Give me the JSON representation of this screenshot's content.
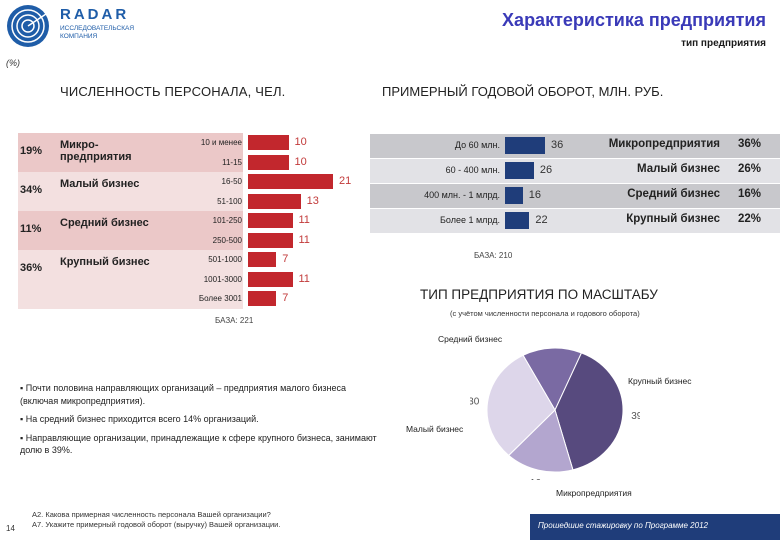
{
  "header": {
    "logo_name": "RADAR",
    "logo_subtitle": "ИССЛЕДОВАТЕЛЬСКАЯ КОМПАНИЯ",
    "title": "Характеристика предприятия",
    "subtitle": "тип предприятия",
    "percent_note": "(%)"
  },
  "colors": {
    "accent_red": "#c2272d",
    "band_pink": "#ebc8c8",
    "band_light": "#f3e0e0",
    "accent_navy": "#1f3d7a",
    "band_grey": "#c8c8cc",
    "band_grey_light": "#e2e2e6",
    "pie_dark": "#574a7e",
    "pie_mid": "#7a6aa3",
    "pie_light": "#b3a6cf",
    "pie_pale": "#ddd6ea"
  },
  "chart_data": [
    {
      "type": "bar",
      "title": "ЧИСЛЕННОСТЬ ПЕРСОНАЛА, ЧЕЛ.",
      "categories": [
        "10 и менее",
        "11-15",
        "16-50",
        "51-100",
        "101-250",
        "250-500",
        "501-1000",
        "1001-3000",
        "Более 3001"
      ],
      "values": [
        10,
        10,
        21,
        13,
        11,
        11,
        7,
        11,
        7
      ],
      "groups": [
        {
          "label": "Микро-предприятия",
          "pct": "19%"
        },
        {
          "label": "Малый бизнес",
          "pct": "34%"
        },
        {
          "label": "Средний бизнес",
          "pct": "11%"
        },
        {
          "label": "Крупный бизнес",
          "pct": "36%"
        }
      ],
      "basis": "БАЗА: 221",
      "xlim": [
        0,
        21
      ]
    },
    {
      "type": "bar",
      "title": "ПРИМЕРНЫЙ ГОДОВОЙ ОБОРОТ, МЛН. РУБ.",
      "categories": [
        "До 60 млн.",
        "60 - 400 млн.",
        "400 млн. - 1 млрд.",
        "Более 1 млрд."
      ],
      "values": [
        36,
        26,
        16,
        22
      ],
      "groups": [
        {
          "label": "Микропредприятия",
          "pct": "36%"
        },
        {
          "label": "Малый бизнес",
          "pct": "26%"
        },
        {
          "label": "Средний бизнес",
          "pct": "16%"
        },
        {
          "label": "Крупный бизнес",
          "pct": "22%"
        }
      ],
      "basis": "БАЗА: 210",
      "xlim": [
        0,
        36
      ]
    },
    {
      "type": "pie",
      "title": "ТИП ПРЕДПРИЯТИЯ ПО МАСШТАБУ",
      "subtitle": "(с учётом численности персонала и годового оборота)",
      "categories": [
        "Средний бизнес",
        "Крупный бизнес",
        "Микропредприятия",
        "Малый бизнес"
      ],
      "values": [
        14,
        39,
        16,
        30
      ]
    }
  ],
  "bullets": [
    "Почти половина направляющих организаций – предприятия малого бизнеса (включая микропредприятия).",
    "На средний бизнес приходится всего 14% организаций.",
    "Направляющие организации, принадлежащие к сфере крупного бизнеса, занимают долю в 39%."
  ],
  "bullet_marker": "▪",
  "footer": {
    "page_number": "14",
    "question_1": "А2. Какова примерная численность персонала Вашей организации?",
    "question_2": "А7. Укажите примерный годовой оборот (выручку) Вашей организации.",
    "program": "Прошедшие стажировку по Программе 2012"
  }
}
